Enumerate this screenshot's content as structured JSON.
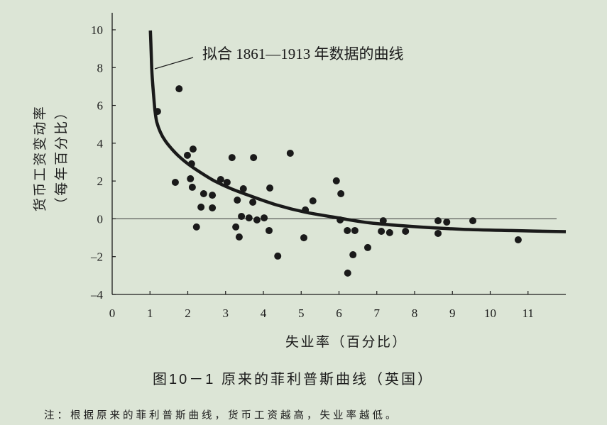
{
  "chart_data": {
    "type": "scatter",
    "xlabel": "失业率（百分比）",
    "ylabel": "货币工资变动率",
    "ylabel_unit": "（每年百分比）",
    "xlim": [
      0,
      12
    ],
    "ylim": [
      -4,
      10.9
    ],
    "xticks": [
      0,
      1,
      2,
      3,
      4,
      5,
      6,
      7,
      8,
      9,
      10,
      11
    ],
    "xtick_labels": [
      "0",
      "1",
      "2",
      "3",
      "4",
      "5",
      "6",
      "7",
      "8",
      "9",
      "10",
      "11"
    ],
    "yticks": [
      10,
      8,
      6,
      4,
      2,
      0,
      -2,
      -4
    ],
    "ytick_labels": [
      "10",
      "8",
      "6",
      "4",
      "2",
      "0",
      "–2",
      "–4"
    ],
    "grid": false,
    "hline_y": 0,
    "series": [
      {
        "type": "scatter",
        "points": [
          [
            1.2,
            5.68
          ],
          [
            1.77,
            6.88
          ],
          [
            1.67,
            1.93
          ],
          [
            1.99,
            3.36
          ],
          [
            2.14,
            3.69
          ],
          [
            2.1,
            2.91
          ],
          [
            2.07,
            2.12
          ],
          [
            2.12,
            1.67
          ],
          [
            2.42,
            1.33
          ],
          [
            2.35,
            0.62
          ],
          [
            2.23,
            -0.43
          ],
          [
            2.65,
            1.25
          ],
          [
            2.65,
            0.58
          ],
          [
            2.87,
            2.08
          ],
          [
            3.04,
            1.93
          ],
          [
            3.17,
            3.24
          ],
          [
            3.31,
            0.99
          ],
          [
            3.47,
            1.59
          ],
          [
            3.27,
            -0.43
          ],
          [
            3.36,
            -0.96
          ],
          [
            3.42,
            0.13
          ],
          [
            3.62,
            0.05
          ],
          [
            3.72,
            0.88
          ],
          [
            3.74,
            3.24
          ],
          [
            3.83,
            -0.06
          ],
          [
            4.02,
            0.05
          ],
          [
            4.17,
            1.63
          ],
          [
            4.15,
            -0.62
          ],
          [
            4.38,
            -1.97
          ],
          [
            4.71,
            3.47
          ],
          [
            5.07,
            -1.0
          ],
          [
            5.11,
            0.47
          ],
          [
            5.31,
            0.95
          ],
          [
            5.93,
            2.01
          ],
          [
            6.05,
            1.33
          ],
          [
            6.03,
            -0.06
          ],
          [
            6.22,
            -0.62
          ],
          [
            6.42,
            -0.62
          ],
          [
            6.37,
            -1.9
          ],
          [
            6.23,
            -2.87
          ],
          [
            6.76,
            -1.52
          ],
          [
            7.12,
            -0.66
          ],
          [
            7.17,
            -0.1
          ],
          [
            7.34,
            -0.73
          ],
          [
            7.76,
            -0.66
          ],
          [
            8.62,
            -0.1
          ],
          [
            8.62,
            -0.77
          ],
          [
            8.85,
            -0.17
          ],
          [
            9.54,
            -0.1
          ],
          [
            10.74,
            -1.11
          ]
        ]
      },
      {
        "type": "line",
        "name": "拟合 1861—1913 年数据的曲线",
        "points": [
          [
            1.01,
            9.96
          ],
          [
            1.03,
            8.95
          ],
          [
            1.05,
            7.82
          ],
          [
            1.09,
            6.7
          ],
          [
            1.13,
            5.76
          ],
          [
            1.18,
            5.12
          ],
          [
            1.28,
            4.56
          ],
          [
            1.41,
            4.11
          ],
          [
            1.58,
            3.69
          ],
          [
            1.78,
            3.28
          ],
          [
            2.03,
            2.87
          ],
          [
            2.33,
            2.46
          ],
          [
            2.7,
            2.01
          ],
          [
            3.15,
            1.59
          ],
          [
            3.7,
            1.18
          ],
          [
            4.36,
            0.73
          ],
          [
            5.11,
            0.35
          ],
          [
            5.86,
            0.09
          ],
          [
            6.8,
            -0.21
          ],
          [
            7.92,
            -0.4
          ],
          [
            9.24,
            -0.55
          ],
          [
            10.55,
            -0.62
          ],
          [
            12.0,
            -0.68
          ]
        ]
      }
    ]
  },
  "caption": "图10－1 原来的菲利普斯曲线（英国）",
  "note": "注：根据原来的菲利普斯曲线，货币工资越高，失业率越低。",
  "colors": {
    "background": "#dce5d6",
    "ink": "#1a1a1a"
  }
}
